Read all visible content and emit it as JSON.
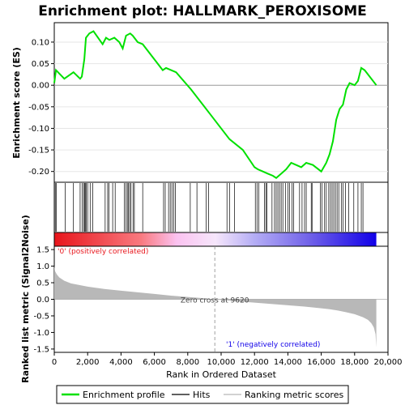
{
  "chart_data": {
    "title": "Enrichment plot: HALLMARK_PEROXISOME",
    "type": "line",
    "x_range": [
      0,
      20000
    ],
    "x_ticks": [
      "0",
      "2,000",
      "4,000",
      "6,000",
      "8,000",
      "10,000",
      "12,000",
      "14,000",
      "16,000",
      "18,000",
      "20,000"
    ],
    "xlabel": "Rank in Ordered Dataset",
    "n_genes": 19300,
    "es_panel": {
      "ylabel": "Enrichment score (ES)",
      "ylim": [
        -0.225,
        0.145
      ],
      "y_ticks": [
        "0.10",
        "0.05",
        "0.00",
        "-0.05",
        "-0.10",
        "-0.15",
        "-0.20"
      ],
      "series": [
        {
          "name": "Enrichment profile",
          "color": "#00e000",
          "x": [
            0,
            100,
            600,
            1150,
            1550,
            1650,
            1800,
            1900,
            2100,
            2350,
            2900,
            3100,
            3300,
            3600,
            3900,
            4100,
            4300,
            4550,
            4700,
            5000,
            5300,
            6500,
            6700,
            7300,
            8200,
            9300,
            10500,
            11300,
            12000,
            12200,
            12500,
            12800,
            13100,
            13300,
            13600,
            13900,
            14200,
            14500,
            14800,
            15100,
            15500,
            16000,
            16300,
            16500,
            16700,
            16900,
            17100,
            17300,
            17500,
            17700,
            18000,
            18200,
            18400,
            18600,
            18800,
            19300
          ],
          "y": [
            0.005,
            0.035,
            0.015,
            0.03,
            0.015,
            0.02,
            0.06,
            0.11,
            0.12,
            0.125,
            0.095,
            0.11,
            0.105,
            0.11,
            0.1,
            0.085,
            0.115,
            0.12,
            0.115,
            0.1,
            0.095,
            0.035,
            0.04,
            0.03,
            -0.01,
            -0.065,
            -0.125,
            -0.15,
            -0.19,
            -0.195,
            -0.2,
            -0.205,
            -0.21,
            -0.215,
            -0.205,
            -0.195,
            -0.18,
            -0.185,
            -0.19,
            -0.18,
            -0.185,
            -0.2,
            -0.18,
            -0.16,
            -0.13,
            -0.08,
            -0.055,
            -0.045,
            -0.01,
            0.005,
            0.0,
            0.01,
            0.04,
            0.035,
            0.025,
            0.0
          ]
        }
      ]
    },
    "hits_panel": {
      "legend_name": "Hits",
      "positions": [
        60,
        120,
        650,
        1150,
        1550,
        1680,
        1760,
        1820,
        1880,
        1920,
        2000,
        2150,
        2300,
        3050,
        3200,
        3280,
        3500,
        3650,
        4200,
        4300,
        4380,
        4450,
        4520,
        4600,
        4720,
        4800,
        5300,
        6550,
        6650,
        6850,
        6950,
        7050,
        7150,
        7250,
        8150,
        8550,
        9100,
        9250,
        10350,
        10500,
        10800,
        12050,
        12150,
        12250,
        12600,
        12680,
        12750,
        13050,
        13200,
        13300,
        13400,
        13500,
        13600,
        13700,
        13850,
        14000,
        14100,
        14250,
        14350,
        14700,
        14850,
        15000,
        15100,
        15400,
        15450,
        15950,
        16050,
        16200,
        16300,
        16450,
        16550,
        16650,
        16750,
        16850,
        16950,
        17050,
        17200,
        17300,
        17450,
        17650,
        17950,
        18200,
        18400,
        18500
      ]
    },
    "ranked_panel": {
      "ylabel": "Ranked list metric (Signal2Noise)",
      "ylim": [
        -1.6,
        1.6
      ],
      "y_ticks": [
        "1.5",
        "1.0",
        "0.5",
        "0.0",
        "-0.5",
        "-1.0",
        "-1.5"
      ],
      "series_name": "Ranking metric scores",
      "x": [
        0,
        50,
        150,
        300,
        600,
        1000,
        2000,
        3000,
        4000,
        5000,
        6000,
        7000,
        8000,
        9000,
        9620,
        10000,
        11000,
        12000,
        13000,
        14000,
        15000,
        16000,
        16500,
        17000,
        17500,
        18000,
        18500,
        18800,
        19000,
        19150,
        19250,
        19300
      ],
      "y": [
        1.0,
        0.85,
        0.75,
        0.66,
        0.56,
        0.48,
        0.38,
        0.31,
        0.26,
        0.21,
        0.16,
        0.11,
        0.07,
        0.03,
        0.0,
        -0.02,
        -0.06,
        -0.1,
        -0.14,
        -0.18,
        -0.22,
        -0.27,
        -0.3,
        -0.34,
        -0.39,
        -0.45,
        -0.54,
        -0.62,
        -0.72,
        -0.85,
        -1.05,
        -1.45
      ],
      "zero_cross_label": "Zero cross at 9620",
      "zero_cross_x": 9620,
      "positive_label": "'0' (positively correlated)",
      "negative_label": "'1' (negatively correlated)"
    },
    "legend": [
      "Enrichment profile",
      "Hits",
      "Ranking metric scores"
    ],
    "colors": {
      "es_line": "#00e000",
      "positive": "#e8151b",
      "negative": "#1100e8",
      "metric_fill": "#b8b8b8"
    }
  }
}
